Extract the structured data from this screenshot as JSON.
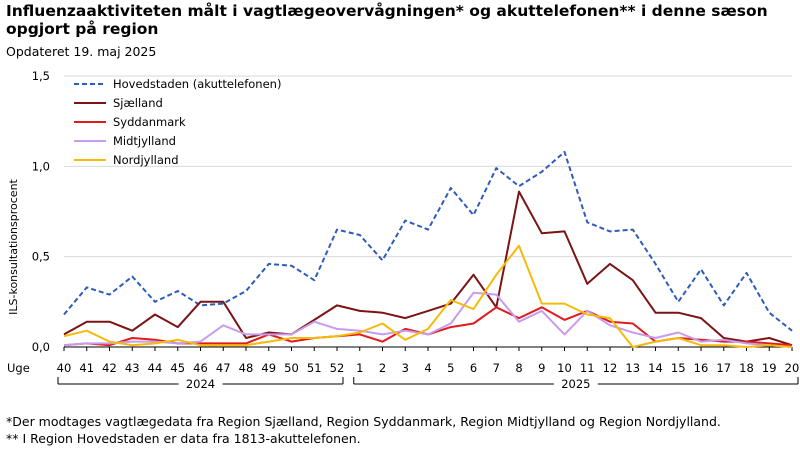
{
  "title": "Influenzaaktiviteten målt i vagtlægeovervågningen* og akuttelefonen** i denne sæson opgjort på region",
  "subtitle": "Opdateret 19. maj 2025",
  "footnotes": [
    "*Der modtages vagtlægedata fra Region Sjælland, Region Syddanmark, Region Midtjylland og Region Nordjylland.",
    "** I Region Hovedstaden er data fra 1813-akuttelefonen."
  ],
  "chart_data": {
    "type": "line",
    "ylabel": "ILS-konsultationsprocent",
    "xlabel_prefix": "Uge",
    "ylim": [
      0,
      1.5
    ],
    "yticks": [
      "0,0",
      "0,5",
      "1,0",
      "1,5"
    ],
    "grid": "horizontal",
    "legend_position": "top-left",
    "categories": [
      "40",
      "41",
      "42",
      "43",
      "44",
      "45",
      "46",
      "47",
      "48",
      "49",
      "50",
      "51",
      "52",
      "1",
      "2",
      "3",
      "4",
      "5",
      "6",
      "7",
      "8",
      "9",
      "10",
      "11",
      "12",
      "13",
      "14",
      "15",
      "16",
      "17",
      "18",
      "19",
      "20"
    ],
    "year_groups": [
      {
        "label": "2024",
        "from": 0,
        "to": 12
      },
      {
        "label": "2025",
        "from": 13,
        "to": 32
      }
    ],
    "series": [
      {
        "name": "Hovedstaden (akuttelefonen)",
        "color": "#2E5DB8",
        "dash": true,
        "values": [
          0.18,
          0.33,
          0.29,
          0.39,
          0.25,
          0.31,
          0.23,
          0.24,
          0.31,
          0.46,
          0.45,
          0.37,
          0.65,
          0.62,
          0.48,
          0.7,
          0.65,
          0.88,
          0.73,
          0.99,
          0.89,
          0.97,
          1.08,
          0.69,
          0.64,
          0.65,
          0.46,
          0.25,
          0.43,
          0.23,
          0.41,
          0.19,
          0.09
        ]
      },
      {
        "name": "Sjælland",
        "color": "#7B1414",
        "dash": false,
        "values": [
          0.07,
          0.14,
          0.14,
          0.09,
          0.18,
          0.11,
          0.25,
          0.25,
          0.05,
          0.08,
          0.07,
          0.15,
          0.23,
          0.2,
          0.19,
          0.16,
          0.2,
          0.24,
          0.4,
          0.22,
          0.86,
          0.63,
          0.64,
          0.35,
          0.46,
          0.37,
          0.19,
          0.19,
          0.16,
          0.05,
          0.03,
          0.05,
          0.01
        ]
      },
      {
        "name": "Syddanmark",
        "color": "#E01B1B",
        "dash": false,
        "values": [
          0.01,
          0.02,
          0.01,
          0.05,
          0.04,
          0.02,
          0.02,
          0.02,
          0.02,
          0.07,
          0.03,
          0.05,
          0.06,
          0.07,
          0.03,
          0.1,
          0.07,
          0.11,
          0.13,
          0.22,
          0.16,
          0.22,
          0.15,
          0.2,
          0.14,
          0.13,
          0.03,
          0.05,
          0.04,
          0.03,
          0.03,
          0.02,
          0.01
        ]
      },
      {
        "name": "Midtjylland",
        "color": "#C99BEF",
        "dash": false,
        "values": [
          0.01,
          0.02,
          0.02,
          0.03,
          0.03,
          0.02,
          0.03,
          0.12,
          0.07,
          0.07,
          0.07,
          0.14,
          0.1,
          0.09,
          0.07,
          0.09,
          0.07,
          0.13,
          0.3,
          0.29,
          0.14,
          0.2,
          0.07,
          0.2,
          0.12,
          0.08,
          0.05,
          0.08,
          0.03,
          0.04,
          0.02,
          0.01,
          0.0
        ]
      },
      {
        "name": "Nordjylland",
        "color": "#F5BB0A",
        "dash": false,
        "values": [
          0.06,
          0.09,
          0.03,
          0.01,
          0.02,
          0.04,
          0.01,
          0.01,
          0.01,
          0.03,
          0.05,
          0.05,
          0.06,
          0.08,
          0.13,
          0.04,
          0.1,
          0.26,
          0.21,
          0.4,
          0.56,
          0.24,
          0.24,
          0.18,
          0.16,
          0.0,
          0.03,
          0.05,
          0.01,
          0.01,
          0.0,
          0.01,
          0.0
        ]
      }
    ]
  }
}
